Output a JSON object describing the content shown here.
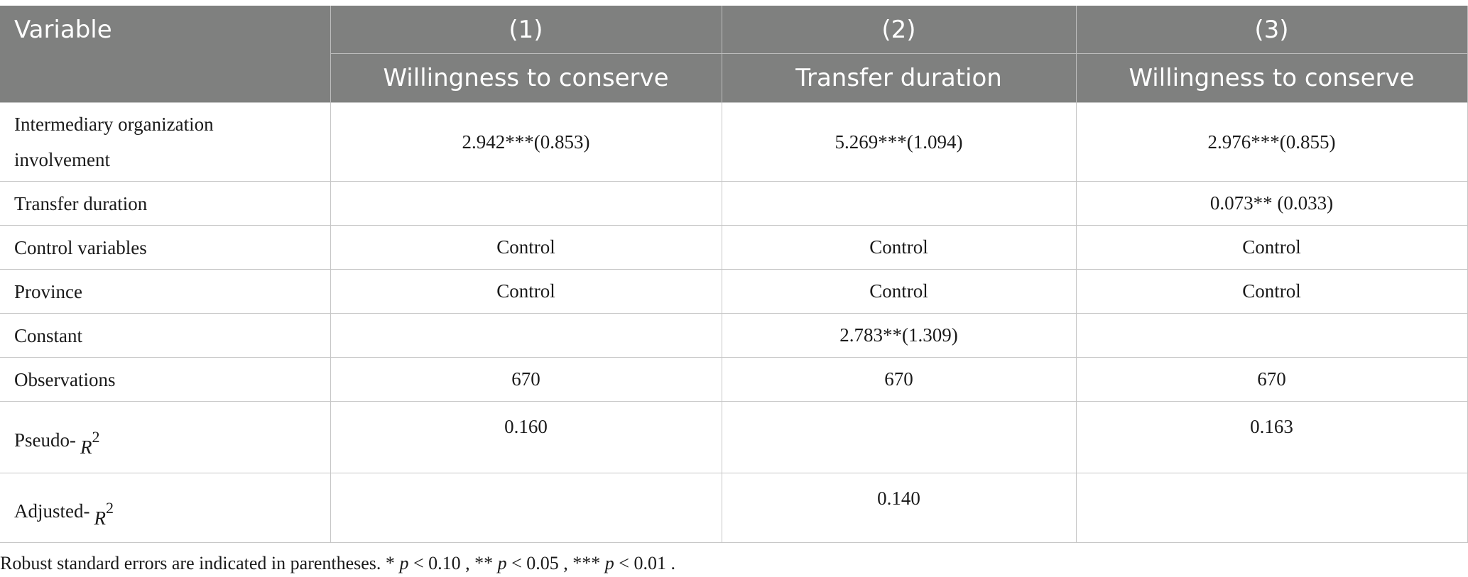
{
  "table": {
    "header": {
      "variable": "Variable",
      "columns": [
        {
          "number": "(1)",
          "name": "Willingness to conserve"
        },
        {
          "number": "(2)",
          "name": "Transfer duration"
        },
        {
          "number": "(3)",
          "name": "Willingness to conserve"
        }
      ]
    },
    "rows": [
      {
        "label_line1": "Intermediary organization",
        "label_line2": "involvement",
        "c1": "2.942***(0.853)",
        "c2": "5.269***(1.094)",
        "c3": "2.976***(0.855)"
      },
      {
        "label": "Transfer duration",
        "c1": "",
        "c2": "",
        "c3": "0.073** (0.033)"
      },
      {
        "label": "Control variables",
        "c1": "Control",
        "c2": "Control",
        "c3": "Control"
      },
      {
        "label": "Province",
        "c1": "Control",
        "c2": "Control",
        "c3": "Control"
      },
      {
        "label": "Constant",
        "c1": "",
        "c2": "2.783**(1.309)",
        "c3": ""
      },
      {
        "label": "Observations",
        "c1": "670",
        "c2": "670",
        "c3": "670"
      },
      {
        "label": "Pseudo-",
        "sym": "R",
        "sup": "2",
        "c1": "0.160",
        "c2": "",
        "c3": "0.163"
      },
      {
        "label": "Adjusted-",
        "sym": "R",
        "sup": "2",
        "c1": "",
        "c2": "0.140",
        "c3": ""
      }
    ]
  },
  "footnote": {
    "lead": "Robust standard errors are indicated in parentheses. * ",
    "p": "p",
    "t1": " < 0.10 , ** ",
    "t2": " < 0.05 , *** ",
    "t3": " < 0.01 ."
  }
}
